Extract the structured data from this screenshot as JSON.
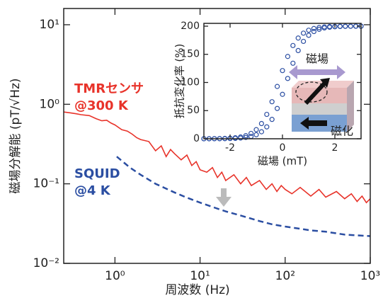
{
  "chart_data": [
    {
      "type": "line",
      "xlabel": "周波数 (Hz)",
      "ylabel": "磁場分解能 (pT/√Hz)",
      "xscale": "log",
      "yscale": "log",
      "xlim": [
        0.25,
        1000
      ],
      "ylim": [
        0.01,
        16
      ],
      "xticks": [
        {
          "value": 1,
          "label": "10⁰"
        },
        {
          "value": 10,
          "label": "10¹"
        },
        {
          "value": 100,
          "label": "10²"
        },
        {
          "value": 1000,
          "label": "10³"
        }
      ],
      "yticks": [
        {
          "value": 0.01,
          "label": "10⁻²"
        },
        {
          "value": 0.1,
          "label": "10⁻¹"
        },
        {
          "value": 1,
          "label": "10⁰"
        },
        {
          "value": 10,
          "label": "10¹"
        }
      ],
      "series": [
        {
          "name": "TMRセンサ",
          "condition": "@300 K",
          "color": "#e8332a",
          "line_style": "solid",
          "x": [
            0.25,
            0.3,
            0.35,
            0.4,
            0.5,
            0.6,
            0.7,
            0.8,
            0.9,
            1,
            1.2,
            1.4,
            1.6,
            1.8,
            2,
            2.5,
            3,
            3.5,
            4,
            4.5,
            5,
            6,
            7,
            8,
            9,
            10,
            12,
            14,
            16,
            18,
            20,
            25,
            30,
            35,
            40,
            50,
            60,
            70,
            80,
            90,
            100,
            120,
            150,
            200,
            250,
            300,
            400,
            500,
            600,
            700,
            800,
            900,
            1000
          ],
          "values": [
            0.8,
            0.78,
            0.76,
            0.74,
            0.72,
            0.66,
            0.62,
            0.63,
            0.58,
            0.55,
            0.48,
            0.46,
            0.42,
            0.38,
            0.36,
            0.34,
            0.26,
            0.3,
            0.22,
            0.27,
            0.24,
            0.2,
            0.23,
            0.17,
            0.19,
            0.15,
            0.14,
            0.16,
            0.12,
            0.14,
            0.11,
            0.13,
            0.1,
            0.12,
            0.095,
            0.11,
            0.085,
            0.1,
            0.08,
            0.095,
            0.085,
            0.075,
            0.09,
            0.07,
            0.085,
            0.068,
            0.08,
            0.065,
            0.075,
            0.06,
            0.07,
            0.058,
            0.065
          ]
        },
        {
          "name": "SQUID",
          "condition": "@4 K",
          "color": "#2b4ea2",
          "line_style": "dashed",
          "x": [
            1.05,
            1.5,
            2,
            3,
            5,
            7,
            10,
            15,
            20,
            30,
            50,
            70,
            100,
            200,
            300,
            500,
            1000
          ],
          "values": [
            0.22,
            0.16,
            0.13,
            0.1,
            0.078,
            0.067,
            0.058,
            0.05,
            0.045,
            0.04,
            0.034,
            0.031,
            0.029,
            0.026,
            0.025,
            0.023,
            0.022
          ]
        }
      ]
    },
    {
      "type": "scatter",
      "xlabel": "磁場 (mT)",
      "ylabel": "抵抗変化率 (%)",
      "xlim": [
        -3,
        3
      ],
      "ylim": [
        0,
        205
      ],
      "xticks": [
        -2,
        0,
        2
      ],
      "yticks": [
        0,
        50,
        100,
        150,
        200
      ],
      "diagram_labels": [
        "磁場",
        "磁化"
      ],
      "x": [
        -3,
        -2.8,
        -2.6,
        -2.4,
        -2.2,
        -2,
        -1.8,
        -1.6,
        -1.4,
        -1.2,
        -1,
        -0.8,
        -0.6,
        -0.4,
        -0.2,
        0,
        0.2,
        0.4,
        0.6,
        0.8,
        1,
        1.2,
        1.4,
        1.6,
        1.8,
        2,
        2.2,
        2.4,
        2.6,
        2.8,
        3
      ],
      "series": [
        {
          "color": "#2b4ea2",
          "values": [
            0,
            0,
            0.1,
            0.1,
            0.2,
            0.4,
            0.7,
            1.3,
            2.4,
            4.1,
            7.2,
            12.4,
            21.1,
            34.4,
            53.8,
            78.9,
            107.1,
            134.2,
            156.7,
            173.0,
            183.8,
            190.5,
            194.5,
            196.9,
            198.2,
            199.0,
            199.4,
            199.7,
            199.8,
            199.9,
            200
          ]
        },
        {
          "color": "#2b4ea2",
          "values": [
            0,
            0.1,
            0.2,
            0.3,
            0.6,
            1.0,
            1.8,
            3.1,
            5.5,
            9.5,
            16.2,
            27.0,
            43.3,
            65.8,
            92.9,
            121.1,
            146.2,
            165.6,
            178.9,
            187.6,
            192.8,
            195.9,
            197.6,
            198.7,
            199.3,
            199.6,
            199.8,
            199.9,
            199.9,
            200,
            200
          ]
        }
      ]
    }
  ]
}
